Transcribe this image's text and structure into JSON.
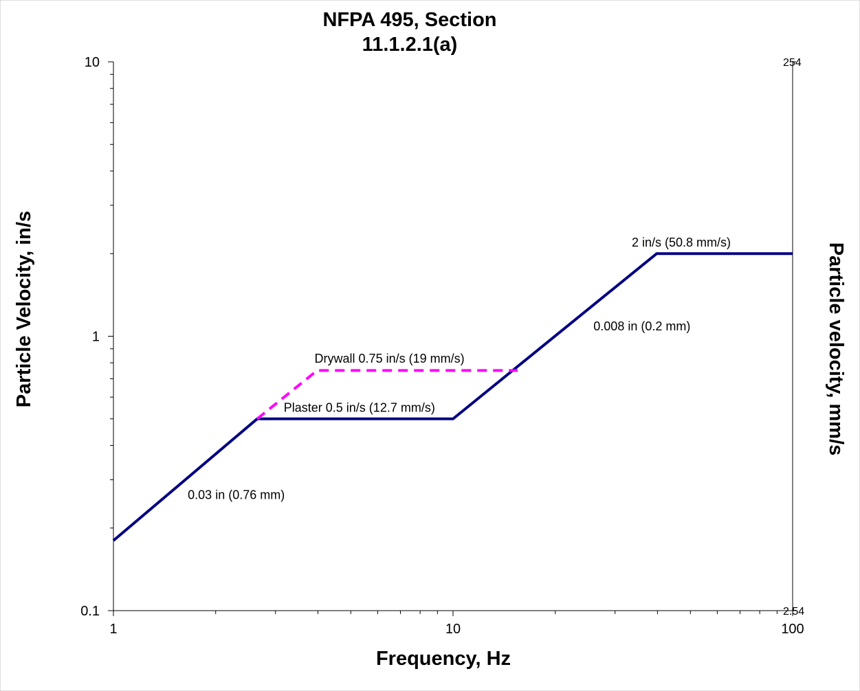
{
  "chart_data": {
    "type": "line",
    "title_lines": [
      "NFPA 495, Section",
      "11.1.2.1(a)"
    ],
    "xlabel": "Frequency, Hz",
    "ylabel": "Particle Velocity, in/s",
    "ylabel_right": "Particle velocity, mm/s",
    "x_scale": "log",
    "y_scale": "log",
    "xlim": [
      1,
      100
    ],
    "ylim": [
      0.1,
      10
    ],
    "x_ticks": [
      {
        "value": 1,
        "label": "1"
      },
      {
        "value": 10,
        "label": "10"
      },
      {
        "value": 100,
        "label": "100"
      }
    ],
    "y_ticks": [
      {
        "value": 0.1,
        "label": "0.1"
      },
      {
        "value": 1,
        "label": "1"
      },
      {
        "value": 10,
        "label": "10"
      }
    ],
    "y_right_ticks": [
      {
        "value": 0.1,
        "label": "2.54"
      },
      {
        "value": 10,
        "label": "254"
      }
    ],
    "grid": false,
    "legend": "none",
    "series": [
      {
        "color": "#000080",
        "style": "solid",
        "x": [
          1,
          2.65,
          10,
          39.8,
          100
        ],
        "y": [
          0.18,
          0.5,
          0.5,
          2,
          2
        ]
      },
      {
        "color": "#ff00ff",
        "style": "dashed",
        "x": [
          2.65,
          3.98,
          15.5
        ],
        "y": [
          0.5,
          0.75,
          0.75
        ]
      }
    ],
    "annotations": [
      {
        "text": "Drywall 0.75 in/s (19 mm/s)",
        "x": 6.5,
        "y": 0.8
      },
      {
        "text": "Plaster 0.5 in/s (12.7 mm/s)",
        "x": 5.3,
        "y": 0.53
      },
      {
        "text": "0.03 in (0.76 mm)",
        "x": 2.3,
        "y": 0.255
      },
      {
        "text": "0.008 in (0.2 mm)",
        "x": 36,
        "y": 1.05
      },
      {
        "text": "2 in/s (50.8 mm/s)",
        "x": 47,
        "y": 2.12
      }
    ]
  }
}
